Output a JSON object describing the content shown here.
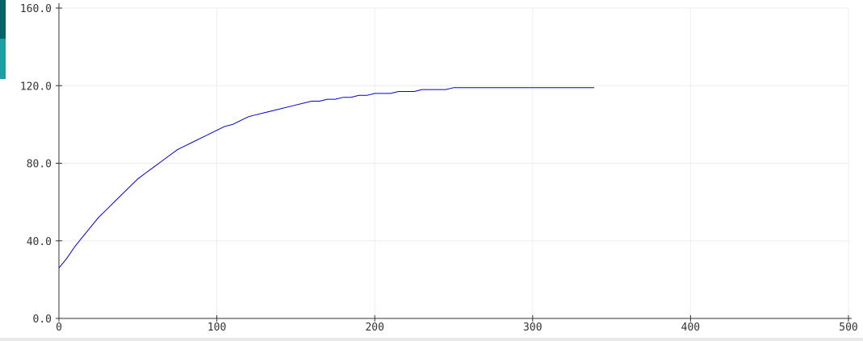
{
  "chart_data": {
    "type": "line",
    "title": "",
    "xlabel": "",
    "ylabel": "",
    "xlim": [
      0,
      500
    ],
    "ylim": [
      0,
      160
    ],
    "x_ticks": [
      0,
      100,
      200,
      300,
      400,
      500
    ],
    "y_ticks": [
      0,
      40,
      80,
      120,
      160
    ],
    "x_tick_labels": [
      "0",
      "100",
      "200",
      "300",
      "400",
      "500"
    ],
    "y_tick_labels": [
      "0.0",
      "40.0",
      "80.0",
      "120.0",
      "160.0"
    ],
    "grid": true,
    "line_color": "#0000cc",
    "grid_color": "#eeeeee",
    "series": [
      {
        "x": [
          0,
          5,
          10,
          15,
          20,
          25,
          30,
          35,
          40,
          45,
          50,
          55,
          60,
          65,
          70,
          75,
          80,
          85,
          90,
          95,
          100,
          105,
          110,
          115,
          120,
          125,
          130,
          135,
          140,
          145,
          150,
          155,
          160,
          165,
          170,
          175,
          180,
          185,
          190,
          195,
          200,
          205,
          210,
          215,
          220,
          225,
          230,
          235,
          240,
          245,
          250,
          260,
          270,
          280,
          290,
          295,
          300,
          305,
          310,
          315,
          320,
          325,
          330,
          335,
          339
        ],
        "values": [
          26,
          31,
          37,
          42,
          47,
          52,
          56,
          60,
          64,
          68,
          72,
          75,
          78,
          81,
          84,
          87,
          89,
          91,
          93,
          95,
          97,
          99,
          100,
          102,
          104,
          105,
          106,
          107,
          108,
          109,
          110,
          111,
          112,
          112,
          113,
          113,
          114,
          114,
          115,
          115,
          116,
          116,
          116,
          117,
          117,
          117,
          118,
          118,
          118,
          118,
          119,
          119,
          119,
          119,
          119,
          119,
          119,
          119,
          119,
          119,
          119,
          119,
          119,
          119,
          119
        ]
      }
    ]
  }
}
